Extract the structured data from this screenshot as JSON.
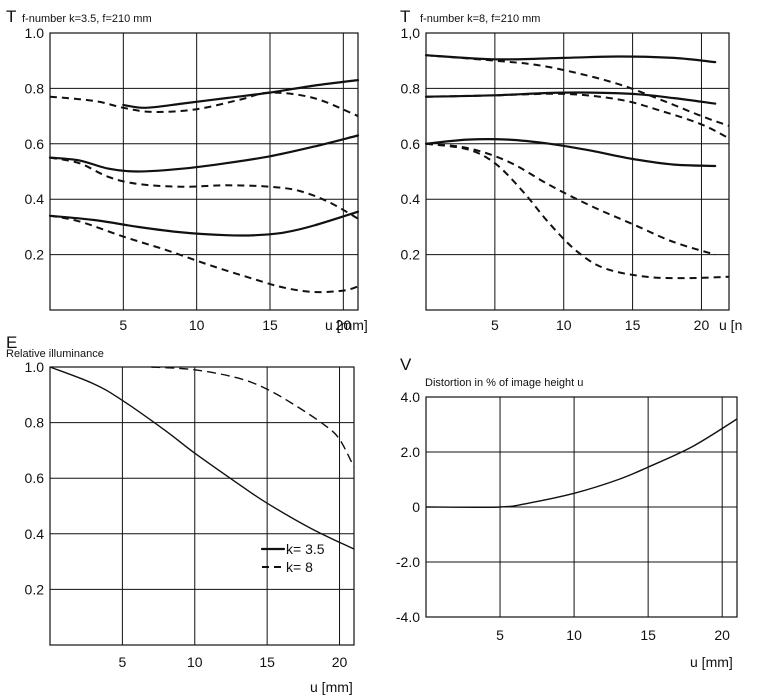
{
  "chart_data": [
    {
      "id": "t35",
      "type": "line",
      "symbol": "T",
      "title": "f-number k=3.5, f=210 mm",
      "xlabel": "u [mm]",
      "xlim": [
        0,
        21
      ],
      "ylim": [
        0,
        1.0
      ],
      "xticks": [
        5,
        10,
        15,
        20
      ],
      "yticks": [
        0.2,
        0.4,
        0.6,
        0.8,
        1.0
      ],
      "ytick_labels": [
        "0.2",
        "0.4",
        "0.6",
        "0.8",
        "1.0"
      ],
      "grid": true,
      "series": [
        {
          "style": "solid",
          "x": [
            5,
            6.5,
            9,
            12,
            15,
            18,
            21
          ],
          "y": [
            0.74,
            0.73,
            0.745,
            0.765,
            0.785,
            0.81,
            0.83
          ]
        },
        {
          "style": "dashed",
          "x": [
            0,
            3,
            5,
            7,
            10,
            13,
            15,
            18,
            21
          ],
          "y": [
            0.77,
            0.755,
            0.73,
            0.715,
            0.725,
            0.76,
            0.785,
            0.765,
            0.7
          ]
        },
        {
          "style": "solid",
          "x": [
            0,
            2,
            4,
            6,
            9,
            12,
            15,
            18,
            21
          ],
          "y": [
            0.55,
            0.54,
            0.51,
            0.5,
            0.51,
            0.53,
            0.555,
            0.59,
            0.63
          ]
        },
        {
          "style": "dashed",
          "x": [
            0,
            2,
            4,
            6,
            9,
            12,
            15,
            17,
            19,
            21
          ],
          "y": [
            0.55,
            0.53,
            0.48,
            0.455,
            0.445,
            0.45,
            0.445,
            0.43,
            0.39,
            0.33
          ]
        },
        {
          "style": "solid",
          "x": [
            0,
            3,
            6,
            9,
            12,
            14,
            16,
            18,
            21
          ],
          "y": [
            0.34,
            0.325,
            0.3,
            0.28,
            0.27,
            0.27,
            0.28,
            0.305,
            0.355
          ]
        },
        {
          "style": "dashed",
          "x": [
            0,
            2,
            5,
            8,
            11,
            14,
            16,
            18,
            20,
            21
          ],
          "y": [
            0.34,
            0.32,
            0.265,
            0.215,
            0.16,
            0.11,
            0.08,
            0.065,
            0.07,
            0.085
          ]
        }
      ]
    },
    {
      "id": "t8",
      "type": "line",
      "symbol": "T",
      "title": "f-number k=8, f=210 mm",
      "xlabel": "u [n",
      "xlim": [
        0,
        22
      ],
      "ylim": [
        0,
        1.0
      ],
      "xticks": [
        5,
        10,
        15,
        20
      ],
      "yticks": [
        0.2,
        0.4,
        0.6,
        0.8,
        1.0
      ],
      "ytick_labels": [
        "0.2",
        "0.4",
        "0.6",
        "0.8",
        "1,0"
      ],
      "grid": true,
      "series": [
        {
          "style": "solid",
          "x": [
            0,
            5,
            10,
            14,
            18,
            21
          ],
          "y": [
            0.92,
            0.905,
            0.91,
            0.915,
            0.91,
            0.895
          ]
        },
        {
          "style": "dashed",
          "x": [
            0,
            5,
            8,
            11,
            14,
            17,
            20,
            22
          ],
          "y": [
            0.92,
            0.9,
            0.885,
            0.855,
            0.815,
            0.76,
            0.7,
            0.665
          ]
        },
        {
          "style": "solid",
          "x": [
            0,
            5,
            10,
            15,
            18,
            21
          ],
          "y": [
            0.77,
            0.775,
            0.785,
            0.78,
            0.765,
            0.745
          ]
        },
        {
          "style": "dashed",
          "x": [
            0,
            5,
            10,
            14,
            17,
            20,
            22
          ],
          "y": [
            0.77,
            0.775,
            0.78,
            0.76,
            0.72,
            0.67,
            0.62
          ]
        },
        {
          "style": "solid",
          "x": [
            0,
            3,
            6,
            9,
            12,
            15,
            18,
            21
          ],
          "y": [
            0.6,
            0.615,
            0.615,
            0.6,
            0.575,
            0.545,
            0.525,
            0.52
          ]
        },
        {
          "style": "dashed",
          "x": [
            0,
            3,
            6,
            9,
            12,
            15,
            18,
            21
          ],
          "y": [
            0.6,
            0.585,
            0.535,
            0.45,
            0.375,
            0.31,
            0.245,
            0.2
          ]
        },
        {
          "style": "dashed",
          "x": [
            0,
            3,
            5,
            7,
            9,
            11,
            13,
            16,
            19,
            22
          ],
          "y": [
            0.6,
            0.58,
            0.53,
            0.43,
            0.31,
            0.21,
            0.15,
            0.12,
            0.115,
            0.12
          ]
        }
      ]
    },
    {
      "id": "e",
      "type": "line",
      "symbol": "E",
      "title": "Relative illuminance",
      "xlabel": "u [mm]",
      "xlim": [
        0,
        21
      ],
      "ylim": [
        0,
        1.0
      ],
      "xticks": [
        5,
        10,
        15,
        20
      ],
      "yticks": [
        0.2,
        0.4,
        0.6,
        0.8,
        1.0
      ],
      "ytick_labels": [
        "0.2",
        "0.4",
        "0.6",
        "0.8",
        "1.0"
      ],
      "grid": true,
      "legend": {
        "position": "lower-right",
        "items": [
          {
            "label": "k= 3.5",
            "style": "solid"
          },
          {
            "label": "k= 8",
            "style": "dashed"
          }
        ]
      },
      "series": [
        {
          "name": "k= 3.5",
          "style": "solid",
          "x": [
            0,
            3,
            5,
            8,
            10,
            13,
            15,
            18,
            21
          ],
          "y": [
            1.0,
            0.94,
            0.88,
            0.77,
            0.69,
            0.58,
            0.51,
            0.42,
            0.345
          ]
        },
        {
          "name": "k= 8",
          "style": "dashed",
          "x": [
            7,
            10,
            13,
            15,
            17,
            19,
            20,
            21
          ],
          "y": [
            1.0,
            0.99,
            0.96,
            0.92,
            0.86,
            0.79,
            0.74,
            0.64
          ]
        }
      ]
    },
    {
      "id": "v",
      "type": "line",
      "symbol": "V",
      "title": "Distortion in % of image height u",
      "xlabel": "u [mm]",
      "xlim": [
        0,
        21
      ],
      "ylim": [
        -4.0,
        4.0
      ],
      "xticks": [
        5,
        10,
        15,
        20
      ],
      "yticks": [
        -4.0,
        -2.0,
        0,
        2.0,
        4.0
      ],
      "ytick_labels": [
        "-4.0",
        "-2.0",
        "0",
        "2.0",
        "4.0"
      ],
      "grid": true,
      "series": [
        {
          "style": "solid",
          "x": [
            0,
            5,
            7,
            10,
            13,
            15,
            18,
            21
          ],
          "y": [
            0,
            0,
            0.15,
            0.5,
            1.0,
            1.45,
            2.2,
            3.2
          ]
        }
      ]
    }
  ]
}
